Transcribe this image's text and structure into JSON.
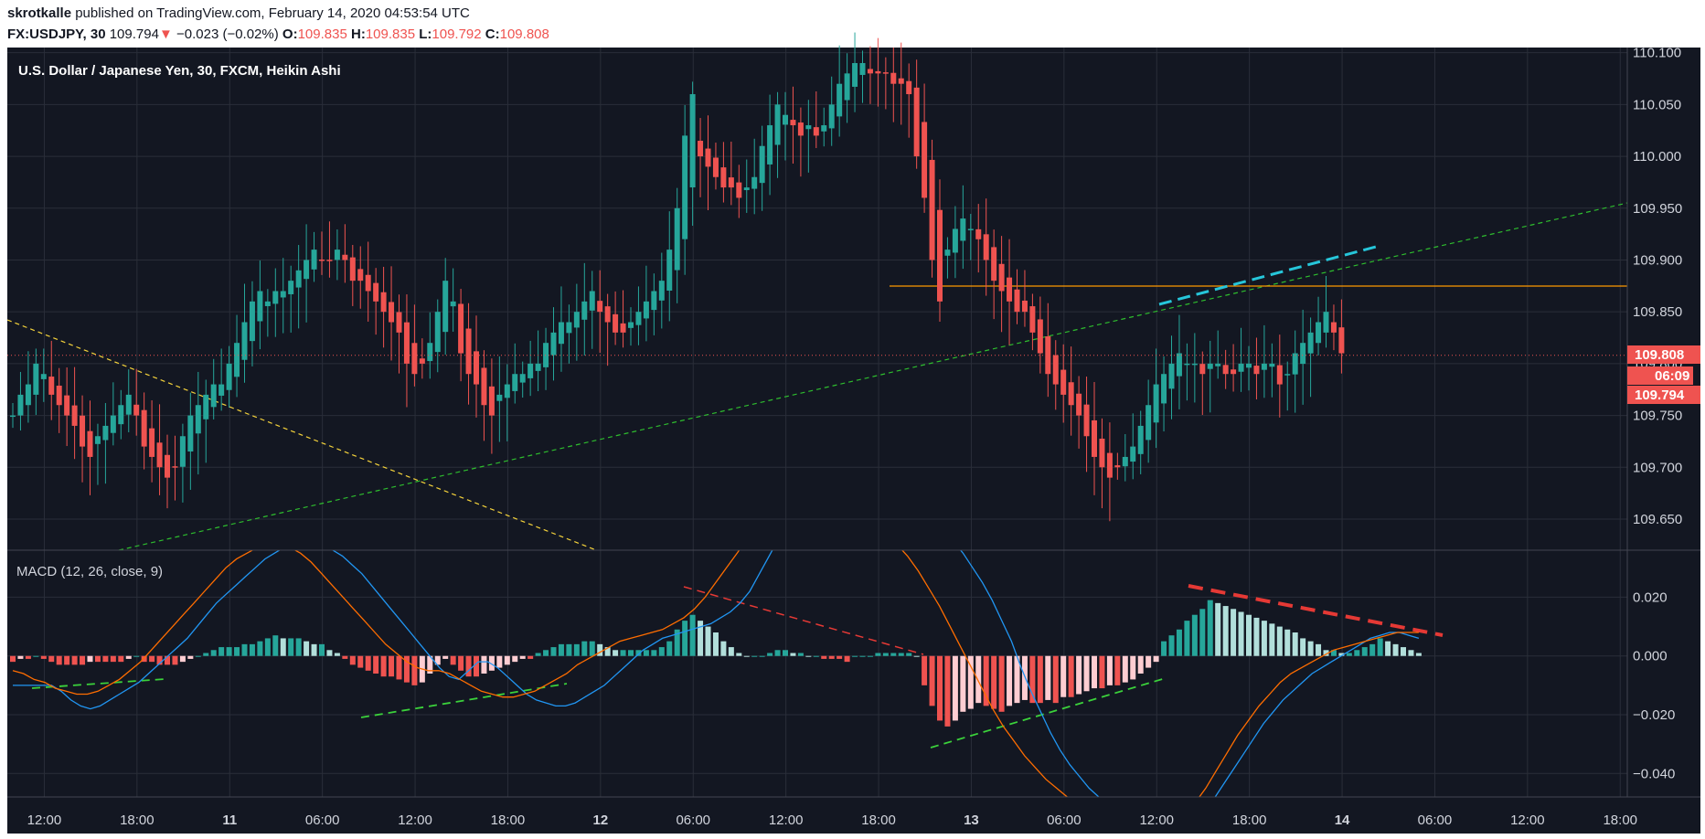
{
  "header": {
    "author": "skrotkalle",
    "published": " published on TradingView.com, February 14, 2020 04:53:54 UTC",
    "symbol": "FX:USDJPY, 30",
    "last": "109.794",
    "arrow": "▼",
    "change": "−0.023 (−0.02%)",
    "o_label": "O:",
    "o_value": "109.835",
    "h_label": "H:",
    "h_value": "109.835",
    "l_label": "L:",
    "l_value": "109.792",
    "c_label": "C:",
    "c_value": "109.808"
  },
  "colors": {
    "background": "#131722",
    "up": "#26a69a",
    "down": "#ef5350",
    "grid": "#2a2e39",
    "macd_line": "#2196f3",
    "signal_line": "#ff6d00",
    "hist_up_strong": "#26a69a",
    "hist_up_weak": "#b2dfdb",
    "hist_down_strong": "#ef5350",
    "hist_down_weak": "#ffcdd2"
  },
  "chart_data": [
    {
      "type": "candlestick",
      "title": "U.S. Dollar / Japanese Yen, 30, FXCM, Heikin Ashi",
      "ylim": [
        109.62,
        110.105
      ],
      "y_ticks": [
        "110.100",
        "110.050",
        "110.000",
        "109.950",
        "109.900",
        "109.850",
        "109.800",
        "109.750",
        "109.700",
        "109.650"
      ],
      "price_tags": [
        {
          "label": "109.808",
          "value": 109.808,
          "color": "#ef5350"
        },
        {
          "label": "06:09",
          "value": 109.788,
          "color": "#ef5350"
        },
        {
          "label": "109.794",
          "value": 109.772,
          "color": "#ef5350"
        }
      ],
      "x_labels": [
        "12:00",
        "18:00",
        "11",
        "06:00",
        "12:00",
        "18:00",
        "12",
        "06:00",
        "12:00",
        "18:00",
        "13",
        "06:00",
        "12:00",
        "18:00",
        "14",
        "06:00",
        "12:00",
        "18:00"
      ],
      "x_label_bars": [
        1,
        13,
        25,
        37,
        49,
        61,
        73,
        85,
        97,
        109,
        121,
        133,
        145,
        157,
        169,
        181,
        193,
        205
      ],
      "bold_labels": [
        "11",
        "12",
        "13",
        "14"
      ],
      "closes": [
        109.75,
        109.77,
        109.78,
        109.8,
        109.79,
        109.77,
        109.76,
        109.75,
        109.74,
        109.72,
        109.71,
        109.73,
        109.74,
        109.75,
        109.76,
        109.77,
        109.75,
        109.72,
        109.71,
        109.7,
        109.69,
        109.7,
        109.73,
        109.75,
        109.76,
        109.77,
        109.78,
        109.78,
        109.8,
        109.82,
        109.84,
        109.86,
        109.87,
        109.86,
        109.87,
        109.87,
        109.88,
        109.89,
        109.9,
        109.91,
        109.9,
        109.9,
        109.91,
        109.9,
        109.88,
        109.88,
        109.87,
        109.86,
        109.85,
        109.84,
        109.83,
        109.8,
        109.79,
        109.8,
        109.82,
        109.85,
        109.88,
        109.86,
        109.81,
        109.79,
        109.78,
        109.76,
        109.75,
        109.77,
        109.78,
        109.79,
        109.79,
        109.8,
        109.8,
        109.82,
        109.83,
        109.84,
        109.84,
        109.85,
        109.86,
        109.87,
        109.85,
        109.84,
        109.83,
        109.83,
        109.84,
        109.85,
        109.86,
        109.87,
        109.88,
        109.91,
        109.95,
        110.02,
        110.06,
        110.0,
        109.99,
        109.98,
        109.97,
        109.97,
        109.96,
        109.97,
        109.98,
        110.01,
        110.03,
        110.05,
        110.04,
        110.03,
        110.02,
        110.03,
        110.02,
        110.03,
        110.05,
        110.07,
        110.08,
        110.09,
        110.09,
        110.08,
        110.08,
        110.08,
        110.07,
        110.07,
        110.06,
        110.0,
        109.96,
        109.9,
        109.86,
        109.91,
        109.93,
        109.94,
        109.93,
        109.92,
        109.9,
        109.88,
        109.87,
        109.86,
        109.85,
        109.85,
        109.83,
        109.81,
        109.79,
        109.78,
        109.77,
        109.76,
        109.75,
        109.73,
        109.71,
        109.7,
        109.69,
        109.7,
        109.71,
        109.72,
        109.74,
        109.76,
        109.78,
        109.79,
        109.8,
        109.81,
        109.8,
        109.8,
        109.79,
        109.8,
        109.8,
        109.79,
        109.79,
        109.8,
        109.8,
        109.79,
        109.8,
        109.8,
        109.78,
        109.79,
        109.81,
        109.82,
        109.83,
        109.84,
        109.85,
        109.83,
        109.81
      ]
    },
    {
      "type": "bar",
      "title": "MACD (12, 26, close, 9)",
      "ylim": [
        -0.048,
        0.036
      ],
      "y_ticks": [
        "0.020",
        "0.000",
        "−0.020",
        "−0.040"
      ],
      "histogram": [
        -0.002,
        -0.001,
        -0.001,
        0.0,
        -0.001,
        -0.002,
        -0.003,
        -0.003,
        -0.003,
        -0.003,
        -0.002,
        -0.002,
        -0.002,
        -0.002,
        -0.002,
        -0.001,
        0.0,
        -0.002,
        -0.002,
        -0.003,
        -0.003,
        -0.003,
        -0.002,
        -0.001,
        0.0,
        0.001,
        0.002,
        0.003,
        0.003,
        0.003,
        0.004,
        0.004,
        0.005,
        0.006,
        0.007,
        0.006,
        0.006,
        0.006,
        0.005,
        0.004,
        0.004,
        0.002,
        0.001,
        -0.001,
        -0.003,
        -0.004,
        -0.005,
        -0.006,
        -0.007,
        -0.007,
        -0.008,
        -0.009,
        -0.01,
        -0.009,
        -0.006,
        -0.003,
        -0.001,
        -0.003,
        -0.005,
        -0.007,
        -0.007,
        -0.006,
        -0.005,
        -0.004,
        -0.003,
        -0.002,
        -0.001,
        -0.001,
        0.001,
        0.002,
        0.003,
        0.004,
        0.004,
        0.004,
        0.005,
        0.005,
        0.004,
        0.003,
        0.002,
        0.002,
        0.002,
        0.002,
        0.002,
        0.002,
        0.003,
        0.005,
        0.009,
        0.012,
        0.014,
        0.012,
        0.01,
        0.008,
        0.005,
        0.003,
        0.001,
        0.0,
        0.0,
        0.0,
        0.001,
        0.002,
        0.002,
        0.001,
        0.001,
        0.0,
        0.0,
        -0.001,
        -0.001,
        -0.001,
        -0.002,
        0.0,
        0.0,
        0.0,
        0.001,
        0.001,
        0.001,
        0.001,
        0.001,
        0.0,
        -0.01,
        -0.017,
        -0.022,
        -0.024,
        -0.022,
        -0.019,
        -0.018,
        -0.016,
        -0.017,
        -0.018,
        -0.019,
        -0.017,
        -0.016,
        -0.015,
        -0.016,
        -0.016,
        -0.015,
        -0.016,
        -0.014,
        -0.014,
        -0.013,
        -0.012,
        -0.011,
        -0.011,
        -0.01,
        -0.01,
        -0.009,
        -0.008,
        -0.006,
        -0.004,
        -0.002,
        0.005,
        0.007,
        0.009,
        0.012,
        0.014,
        0.016,
        0.019,
        0.018,
        0.017,
        0.016,
        0.015,
        0.014,
        0.013,
        0.012,
        0.011,
        0.01,
        0.009,
        0.008,
        0.006,
        0.005,
        0.004,
        0.002,
        0.002,
        0.001,
        0.001,
        0.002,
        0.003,
        0.004,
        0.006,
        0.005,
        0.004,
        0.003,
        0.002,
        0.001
      ],
      "macd": [
        -0.01,
        -0.01,
        -0.01,
        -0.01,
        -0.01,
        -0.012,
        -0.015,
        -0.017,
        -0.018,
        -0.017,
        -0.015,
        -0.013,
        -0.011,
        -0.009,
        -0.006,
        -0.003,
        0.0,
        0.003,
        0.006,
        0.01,
        0.014,
        0.018,
        0.021,
        0.024,
        0.027,
        0.03,
        0.033,
        0.035,
        0.037,
        0.038,
        0.039,
        0.038,
        0.037,
        0.036,
        0.034,
        0.031,
        0.028,
        0.024,
        0.02,
        0.016,
        0.012,
        0.008,
        0.004,
        0.0,
        -0.004,
        -0.007,
        -0.008,
        -0.005,
        -0.002,
        -0.002,
        -0.004,
        -0.007,
        -0.01,
        -0.013,
        -0.015,
        -0.016,
        -0.017,
        -0.017,
        -0.016,
        -0.014,
        -0.012,
        -0.01,
        -0.007,
        -0.004,
        -0.001,
        0.002,
        0.004,
        0.006,
        0.007,
        0.008,
        0.009,
        0.01,
        0.011,
        0.013,
        0.015,
        0.018,
        0.022,
        0.028,
        0.034,
        0.04,
        0.045,
        0.048,
        0.05,
        0.05,
        0.049,
        0.047,
        0.046,
        0.045,
        0.045,
        0.046,
        0.047,
        0.048,
        0.049,
        0.049,
        0.048,
        0.046,
        0.043,
        0.039,
        0.035,
        0.03,
        0.025,
        0.019,
        0.012,
        0.005,
        -0.004,
        -0.012,
        -0.019,
        -0.026,
        -0.032,
        -0.037,
        -0.041,
        -0.045,
        -0.048,
        -0.051,
        -0.053,
        -0.054,
        -0.055,
        -0.056,
        -0.057,
        -0.058,
        -0.058,
        -0.057,
        -0.055,
        -0.052,
        -0.048,
        -0.043,
        -0.038,
        -0.033,
        -0.028,
        -0.023,
        -0.019,
        -0.015,
        -0.012,
        -0.009,
        -0.006,
        -0.004,
        -0.002,
        0.0,
        0.002,
        0.004,
        0.006,
        0.007,
        0.008,
        0.008,
        0.007,
        0.006
      ],
      "signal": [
        -0.005,
        -0.006,
        -0.008,
        -0.009,
        -0.011,
        -0.012,
        -0.013,
        -0.013,
        -0.012,
        -0.01,
        -0.008,
        -0.005,
        -0.002,
        0.002,
        0.006,
        0.01,
        0.014,
        0.018,
        0.022,
        0.026,
        0.03,
        0.033,
        0.035,
        0.037,
        0.038,
        0.038,
        0.037,
        0.035,
        0.032,
        0.028,
        0.024,
        0.02,
        0.016,
        0.012,
        0.008,
        0.004,
        0.001,
        -0.002,
        -0.004,
        -0.005,
        -0.005,
        -0.006,
        -0.008,
        -0.01,
        -0.012,
        -0.013,
        -0.014,
        -0.014,
        -0.013,
        -0.012,
        -0.01,
        -0.008,
        -0.006,
        -0.003,
        -0.001,
        0.001,
        0.003,
        0.005,
        0.006,
        0.007,
        0.008,
        0.009,
        0.011,
        0.013,
        0.016,
        0.02,
        0.025,
        0.03,
        0.035,
        0.04,
        0.044,
        0.046,
        0.047,
        0.047,
        0.046,
        0.045,
        0.046,
        0.047,
        0.048,
        0.048,
        0.047,
        0.045,
        0.042,
        0.038,
        0.034,
        0.029,
        0.023,
        0.017,
        0.01,
        0.003,
        -0.004,
        -0.011,
        -0.018,
        -0.024,
        -0.029,
        -0.034,
        -0.038,
        -0.042,
        -0.045,
        -0.048,
        -0.05,
        -0.052,
        -0.053,
        -0.054,
        -0.055,
        -0.056,
        -0.057,
        -0.057,
        -0.057,
        -0.056,
        -0.054,
        -0.05,
        -0.045,
        -0.039,
        -0.033,
        -0.027,
        -0.022,
        -0.017,
        -0.013,
        -0.009,
        -0.006,
        -0.004,
        -0.002,
        0.0,
        0.002,
        0.003,
        0.004,
        0.005,
        0.006,
        0.007,
        0.008,
        0.008,
        0.008
      ]
    }
  ]
}
